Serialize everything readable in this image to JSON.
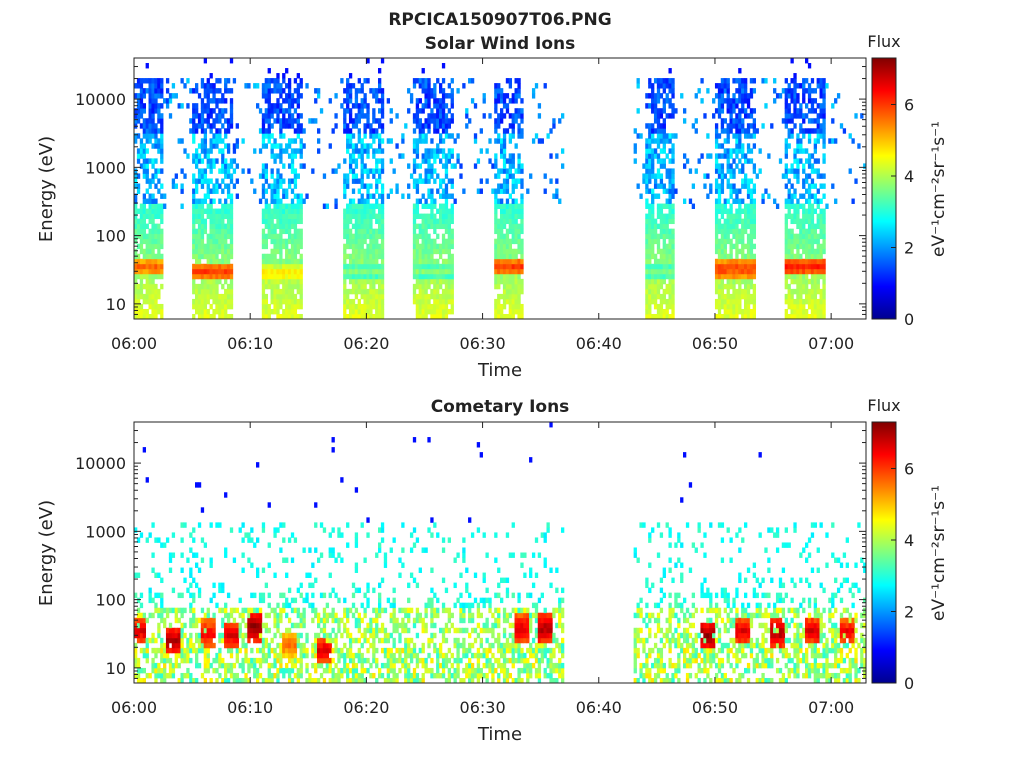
{
  "figure": {
    "title": "RPCICA150907T06.PNG",
    "colors": {
      "axis": "#222222",
      "background": "#ffffff"
    }
  },
  "chart_data": [
    {
      "type": "heatmap",
      "title": "Solar Wind Ions",
      "xlabel": "Time",
      "ylabel": "Energy (eV)",
      "x_scale": "time",
      "y_scale": "log",
      "xlim": [
        "06:00",
        "07:03"
      ],
      "ylim": [
        6,
        40000
      ],
      "x_ticks": [
        "06:00",
        "06:10",
        "06:20",
        "06:30",
        "06:40",
        "06:50",
        "07:00"
      ],
      "y_ticks": [
        "10",
        "100",
        "1000",
        "10000"
      ],
      "colorbar": {
        "label": "eV⁻¹cm⁻²sr⁻¹s⁻¹",
        "title": "Flux",
        "range": [
          0,
          7.3
        ],
        "ticks": [
          "0",
          "2",
          "4",
          "6"
        ],
        "colormap": "jet"
      },
      "data_gaps": [
        [
          "06:37",
          "06:43"
        ]
      ],
      "active_intervals": [
        {
          "start": "06:00",
          "end": "06:02",
          "peak_energy_ev": 35,
          "peak_flux": 5.5
        },
        {
          "start": "06:05",
          "end": "06:08",
          "peak_energy_ev": 30,
          "peak_flux": 5.8
        },
        {
          "start": "06:11",
          "end": "06:14",
          "peak_energy_ev": 28,
          "peak_flux": 4.6
        },
        {
          "start": "06:18",
          "end": "06:21",
          "peak_energy_ev": 30,
          "peak_flux": 3.5
        },
        {
          "start": "06:24",
          "end": "06:27",
          "peak_energy_ev": 30,
          "peak_flux": 3.5
        },
        {
          "start": "06:31",
          "end": "06:33",
          "peak_energy_ev": 35,
          "peak_flux": 5.8
        },
        {
          "start": "06:44",
          "end": "06:46",
          "peak_energy_ev": 30,
          "peak_flux": 3.5
        },
        {
          "start": "06:50",
          "end": "06:53",
          "peak_energy_ev": 33,
          "peak_flux": 5.8
        },
        {
          "start": "06:56",
          "end": "06:59",
          "peak_energy_ev": 35,
          "peak_flux": 6.0
        }
      ]
    },
    {
      "type": "heatmap",
      "title": "Cometary Ions",
      "xlabel": "Time",
      "ylabel": "Energy (eV)",
      "x_scale": "time",
      "y_scale": "log",
      "xlim": [
        "06:00",
        "07:03"
      ],
      "ylim": [
        6,
        40000
      ],
      "x_ticks": [
        "06:00",
        "06:10",
        "06:20",
        "06:30",
        "06:40",
        "06:50",
        "07:00"
      ],
      "y_ticks": [
        "10",
        "100",
        "1000",
        "10000"
      ],
      "colorbar": {
        "label": "eV⁻¹cm⁻²sr⁻¹s⁻¹",
        "title": "Flux",
        "range": [
          0,
          7.3
        ],
        "ticks": [
          "0",
          "2",
          "4",
          "6"
        ],
        "colormap": "jet"
      },
      "data_gaps": [
        [
          "06:37",
          "06:43"
        ]
      ],
      "hot_spots": [
        {
          "time": "06:00",
          "energy_ev": 35,
          "flux": 6.5
        },
        {
          "time": "06:03",
          "energy_ev": 25,
          "flux": 6.8
        },
        {
          "time": "06:06",
          "energy_ev": 32,
          "flux": 6.3
        },
        {
          "time": "06:08",
          "energy_ev": 30,
          "flux": 6.5
        },
        {
          "time": "06:10",
          "energy_ev": 40,
          "flux": 7.0
        },
        {
          "time": "06:13",
          "energy_ev": 22,
          "flux": 5.5
        },
        {
          "time": "06:16",
          "energy_ev": 18,
          "flux": 6.5
        },
        {
          "time": "06:33",
          "energy_ev": 38,
          "flux": 6.5
        },
        {
          "time": "06:35",
          "energy_ev": 38,
          "flux": 6.8
        },
        {
          "time": "06:49",
          "energy_ev": 30,
          "flux": 7.0
        },
        {
          "time": "06:52",
          "energy_ev": 35,
          "flux": 6.5
        },
        {
          "time": "06:55",
          "energy_ev": 33,
          "flux": 6.8
        },
        {
          "time": "06:58",
          "energy_ev": 35,
          "flux": 6.5
        },
        {
          "time": "07:01",
          "energy_ev": 35,
          "flux": 6.3
        }
      ]
    }
  ]
}
